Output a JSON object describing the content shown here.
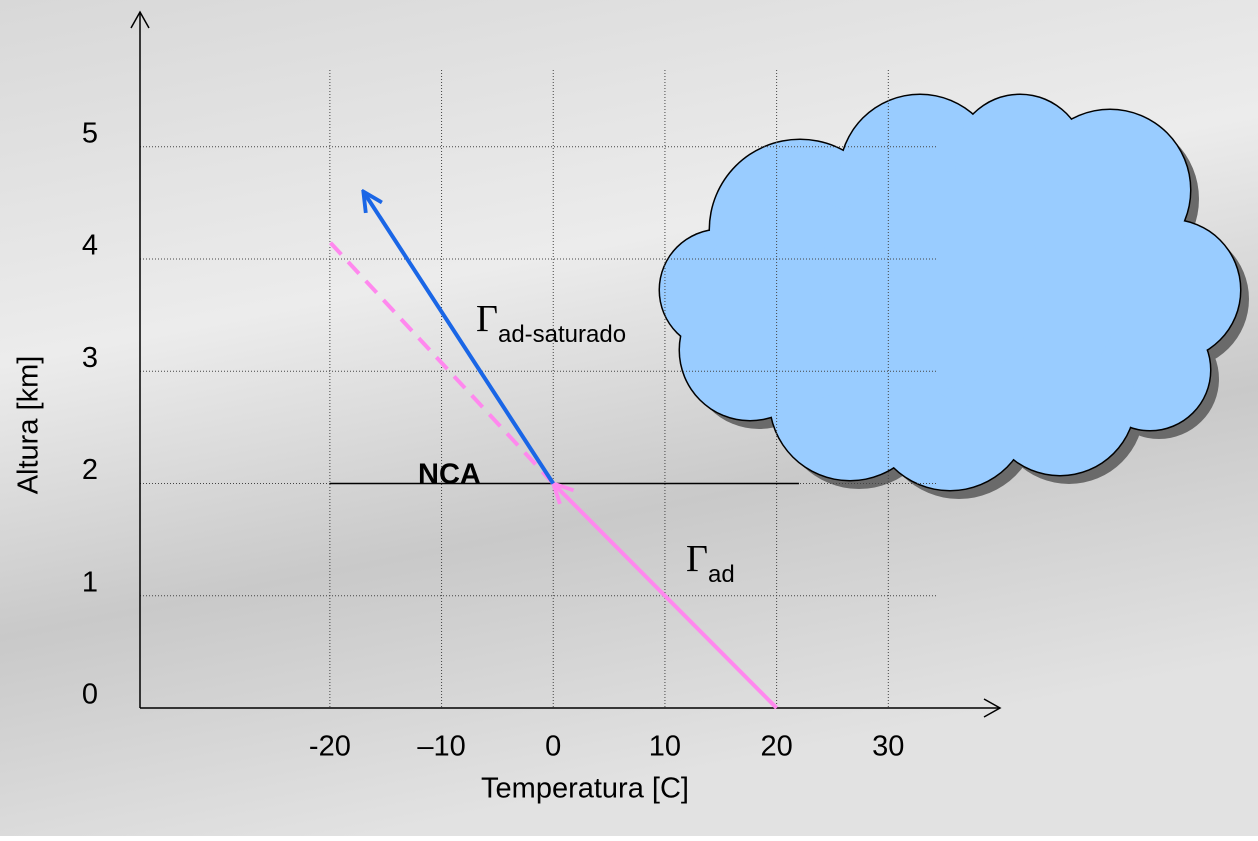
{
  "chart_data": {
    "type": "line",
    "xlabel": "Temperatura [C]",
    "ylabel": "Altura [km]",
    "xlim": [
      -37,
      40
    ],
    "ylim": [
      0,
      6.2
    ],
    "xticks": [
      -20,
      {
        "value": -10,
        "label": "–10"
      },
      0,
      10,
      20,
      30
    ],
    "yticks": [
      0,
      1,
      2,
      3,
      4,
      5
    ],
    "grid": true,
    "series": [
      {
        "color": "#000000",
        "x": [
          -20,
          22
        ],
        "values": [
          2,
          2
        ]
      },
      {
        "color": "#ff88ee",
        "x": [
          20,
          0
        ],
        "values": [
          0,
          2
        ],
        "arrow": true
      },
      {
        "color": "#ff88ee",
        "x": [
          0,
          -20
        ],
        "values": [
          2,
          4.15
        ],
        "dash": true
      },
      {
        "color": "#1a66e6",
        "x": [
          0,
          -17
        ],
        "values": [
          2,
          4.6
        ],
        "arrow": true
      }
    ],
    "annotations": [
      {
        "text": "NCA"
      },
      {
        "symbol": "Γ",
        "sub": "ad-saturado"
      },
      {
        "symbol": "Γ",
        "sub": "ad"
      }
    ],
    "cloud_color": "#99ccff"
  }
}
